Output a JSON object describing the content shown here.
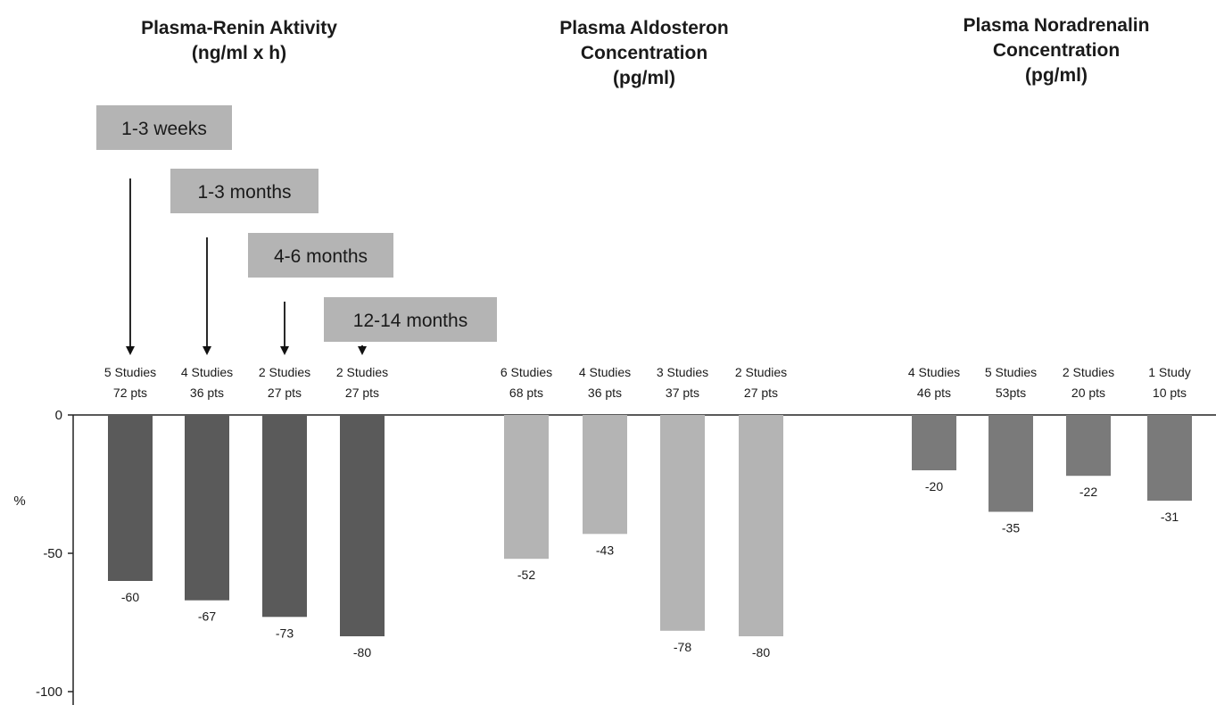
{
  "chart_data": {
    "type": "bar",
    "ylabel": "%",
    "ylim": [
      -100,
      0
    ],
    "yticks": [
      0,
      -50,
      -100
    ],
    "grid": false,
    "colors": {
      "renin": "#5a5a5a",
      "aldosteron": "#b4b4b4",
      "noradrenalin": "#7a7a7a",
      "periods": "#b4b4b4"
    },
    "periods": [
      "1-3 weeks",
      "1-3 months",
      "4-6 months",
      "12-14 months"
    ],
    "groups": [
      {
        "title_lines": [
          "Plasma-Renin Aktivity",
          "(ng/ml x h)"
        ],
        "color_key": "renin",
        "bars": [
          {
            "studies": "5 Studies",
            "patients": "72 pts",
            "value": -60,
            "label": "-60"
          },
          {
            "studies": "4 Studies",
            "patients": "36 pts",
            "value": -67,
            "label": "-67"
          },
          {
            "studies": "2 Studies",
            "patients": "27 pts",
            "value": -73,
            "label": "-73"
          },
          {
            "studies": "2 Studies",
            "patients": "27 pts",
            "value": -80,
            "label": "-80"
          }
        ]
      },
      {
        "title_lines": [
          "Plasma Aldosteron",
          "Concentration",
          "(pg/ml)"
        ],
        "color_key": "aldosteron",
        "bars": [
          {
            "studies": "6 Studies",
            "patients": "68 pts",
            "value": -52,
            "label": "-52"
          },
          {
            "studies": "4 Studies",
            "patients": "36 pts",
            "value": -43,
            "label": "-43"
          },
          {
            "studies": "3 Studies",
            "patients": "37 pts",
            "value": -78,
            "label": "-78"
          },
          {
            "studies": "2 Studies",
            "patients": "27 pts",
            "value": -80,
            "label": "-80"
          }
        ]
      },
      {
        "title_lines": [
          "Plasma Noradrenalin",
          "Concentration",
          "(pg/ml)"
        ],
        "color_key": "noradrenalin",
        "bars": [
          {
            "studies": "4 Studies",
            "patients": "46 pts",
            "value": -20,
            "label": "-20"
          },
          {
            "studies": "5 Studies",
            "patients": "53pts",
            "value": -35,
            "label": "-35"
          },
          {
            "studies": "2 Studies",
            "patients": "20 pts",
            "value": -22,
            "label": "-22"
          },
          {
            "studies": "1 Study",
            "patients": "10 pts",
            "value": -31,
            "label": "-31"
          }
        ]
      }
    ]
  }
}
